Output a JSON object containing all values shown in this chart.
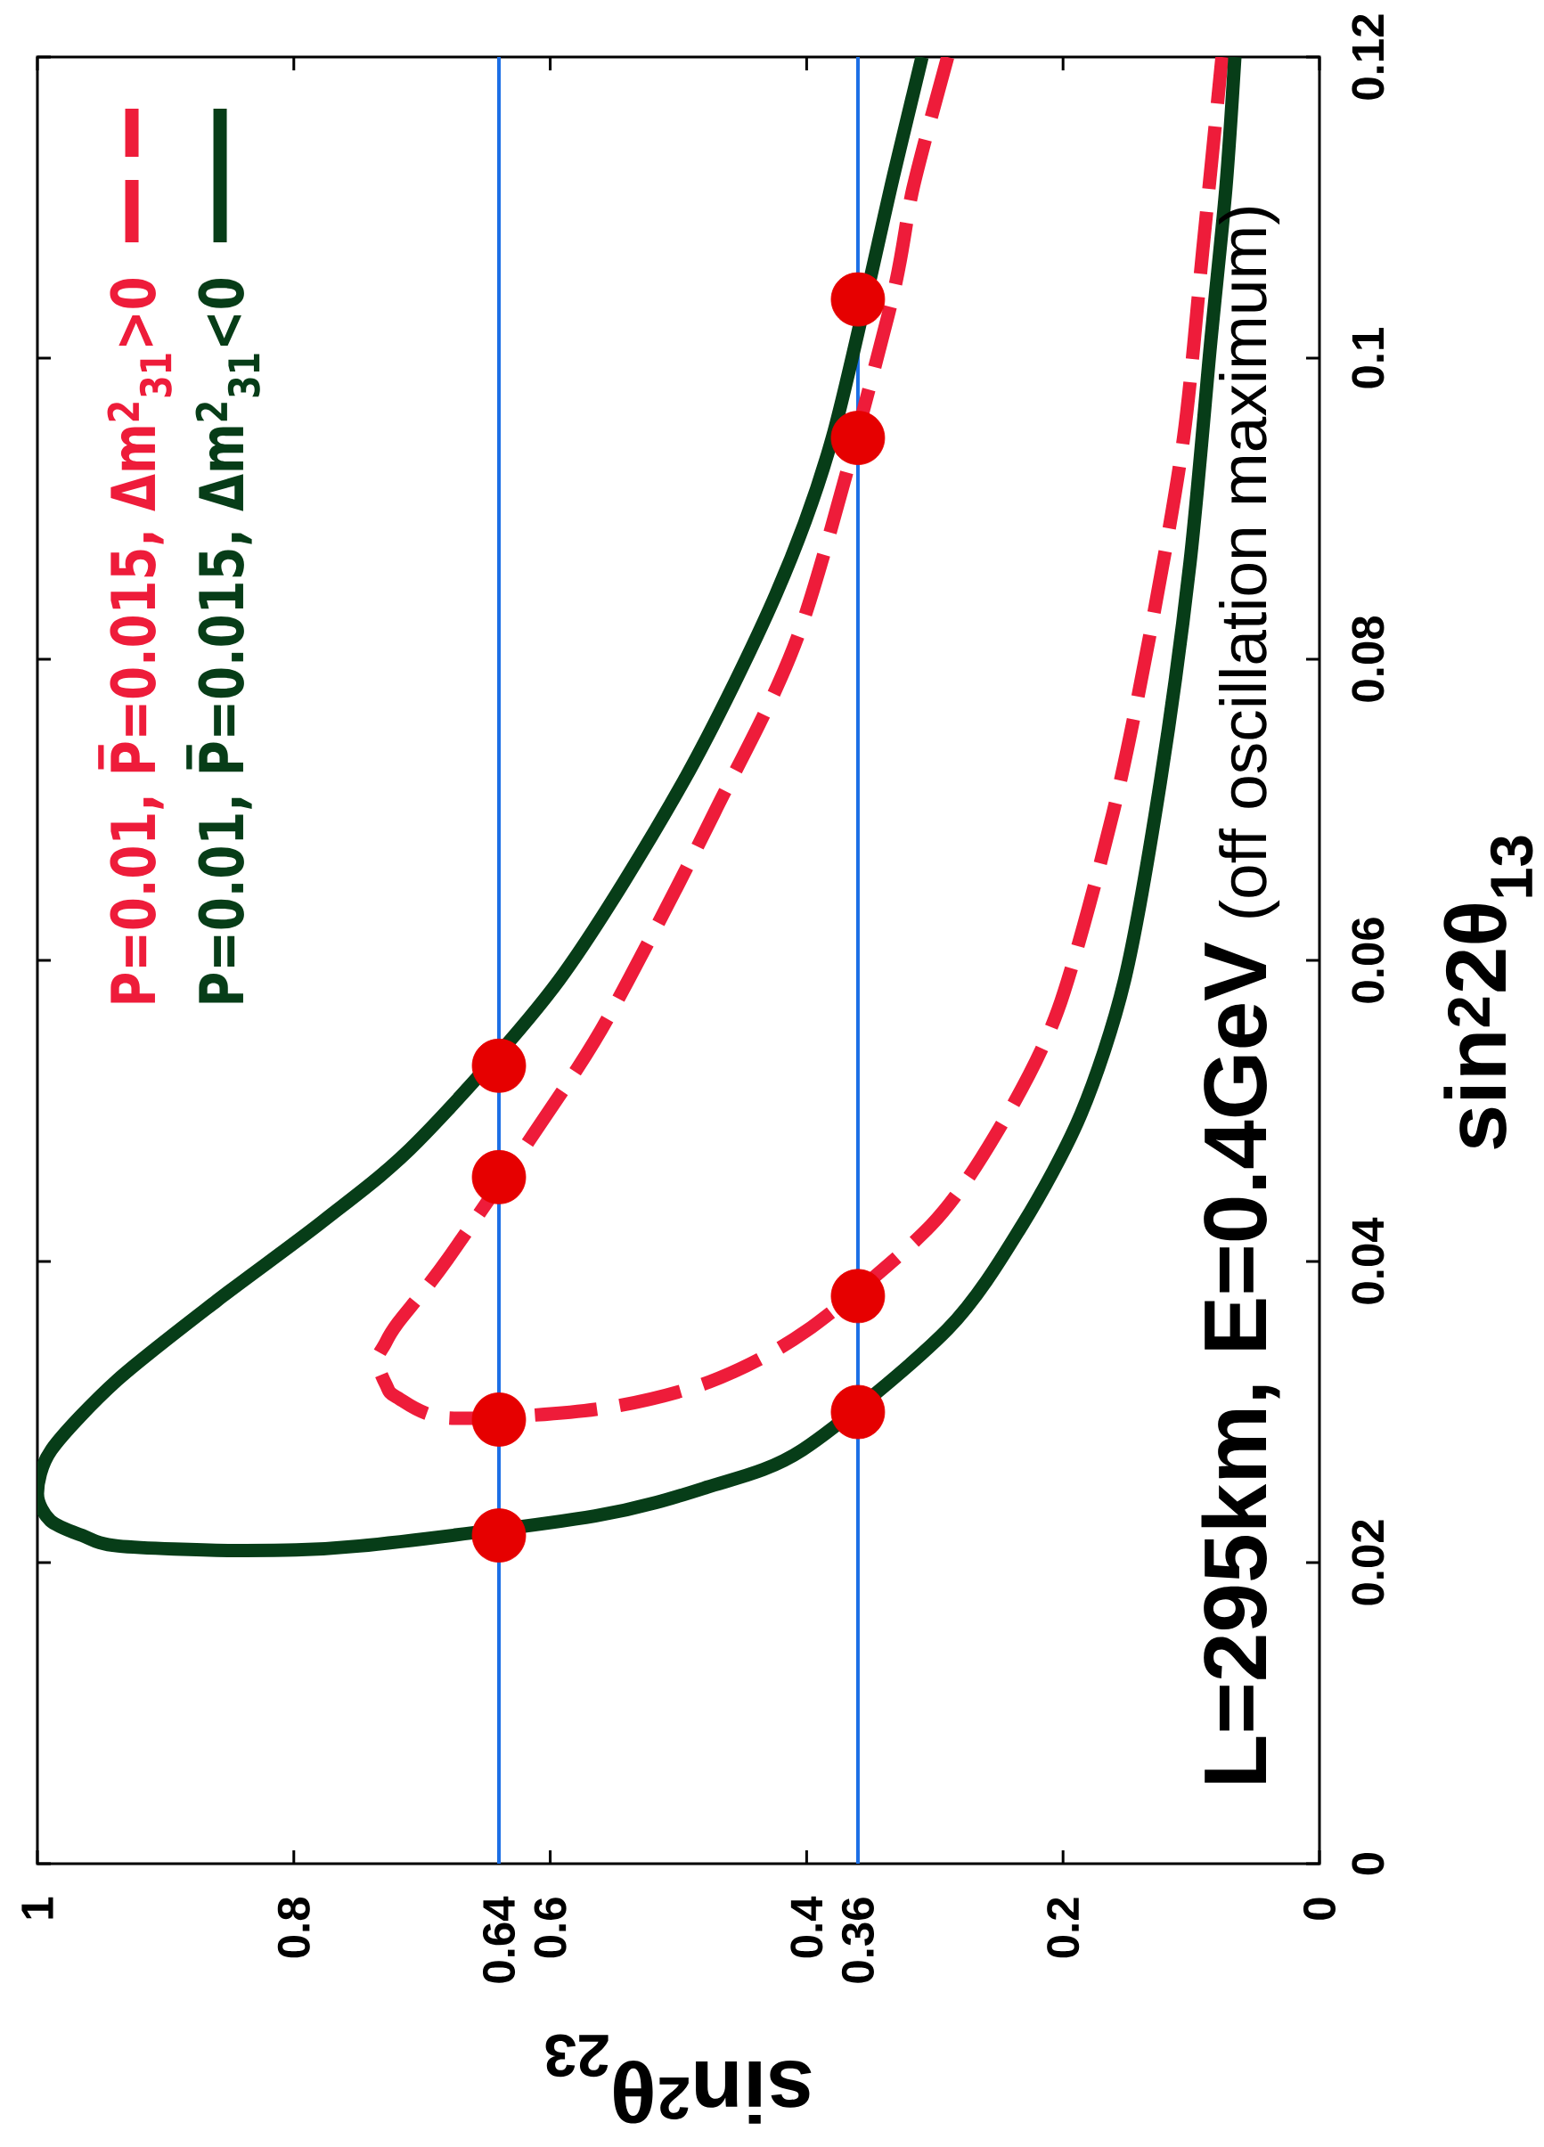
{
  "chart_data": {
    "type": "line",
    "xlabel": "sin$^{2}$θ$_{23}$",
    "ylabel": "sin$^{2}$2θ$_{13}$",
    "xlim": [
      1,
      0
    ],
    "ylim": [
      0,
      0.12
    ],
    "xticks": [
      1,
      0.8,
      0.64,
      0.6,
      0.4,
      0.36,
      0.2,
      0
    ],
    "yticks": [
      0,
      0.02,
      0.04,
      0.06,
      0.08,
      0.1,
      0.12
    ],
    "legend": "top left",
    "series": [
      {
        "name": "P=0.01, P̅=0.015, Δm$^{2}$$_{31}$>0",
        "color": "#ee1c3a",
        "line_style": "dashed",
        "x": [
          0.29,
          0.317,
          0.336,
          0.404,
          0.472,
          0.539,
          0.579,
          0.678,
          0.719,
          0.729,
          0.735,
          0.728,
          0.72,
          0.679,
          0.563,
          0.476,
          0.4,
          0.303,
          0.25,
          0.204,
          0.161,
          0.131,
          0.106,
          0.091,
          0.076
        ],
        "values": [
          0.12,
          0.1113,
          0.103,
          0.0822,
          0.0698,
          0.0587,
          0.0528,
          0.0404,
          0.0359,
          0.0345,
          0.0334,
          0.0318,
          0.031,
          0.0296,
          0.0302,
          0.032,
          0.0354,
          0.0424,
          0.0488,
          0.0567,
          0.0698,
          0.0822,
          0.0947,
          0.1072,
          0.12
        ]
      },
      {
        "name": "P=0.01, P̅=0.015, Δm$^{2}$$_{31}$<0",
        "color": "#073d18",
        "line_style": "solid",
        "x": [
          0.31,
          0.332,
          0.38,
          0.424,
          0.496,
          0.593,
          0.703,
          0.777,
          0.86,
          0.938,
          0.989,
          1.0,
          0.99,
          0.965,
          0.937,
          0.843,
          0.749,
          0.565,
          0.478,
          0.403,
          0.29,
          0.232,
          0.186,
          0.152,
          0.124,
          0.101,
          0.085,
          0.073,
          0.066
        ],
        "values": [
          0.12,
          0.1122,
          0.0947,
          0.0843,
          0.0719,
          0.0587,
          0.048,
          0.0427,
          0.0374,
          0.0321,
          0.0275,
          0.0246,
          0.0228,
          0.0218,
          0.0211,
          0.0208,
          0.0211,
          0.0231,
          0.025,
          0.0275,
          0.0355,
          0.0424,
          0.0498,
          0.0587,
          0.0719,
          0.0864,
          0.1009,
          0.1113,
          0.12
        ]
      },
      {
        "type": "scatter",
        "color": "#e60000",
        "marker": "circle",
        "x": [
          0.64,
          0.64,
          0.64,
          0.64,
          0.36,
          0.36,
          0.36,
          0.36
        ],
        "values": [
          0.0218,
          0.0295,
          0.0456,
          0.053,
          0.03,
          0.0377,
          0.0947,
          0.1039
        ]
      }
    ],
    "ref_lines": [
      {
        "axis": "x",
        "value": 0.64,
        "color": "#1c6fe6"
      },
      {
        "axis": "x",
        "value": 0.36,
        "color": "#1c6fe6"
      }
    ],
    "annotations": [
      "L=295km, E=0.4GeV",
      "(off oscillation maximum)"
    ]
  }
}
